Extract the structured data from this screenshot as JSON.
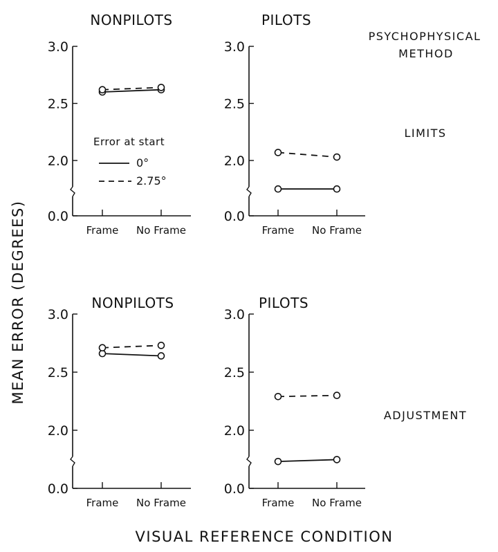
{
  "figure": {
    "ylabel": "MEAN ERROR (DEGREES)",
    "xlabel": "VISUAL REFERENCE CONDITION",
    "method_heading": [
      "PSYCHOPHYSICAL",
      "METHOD"
    ],
    "row_labels": [
      "LIMITS",
      "ADJUSTMENT"
    ]
  },
  "legend": {
    "title": "Error at start",
    "entries": [
      {
        "label": "0°",
        "style": "solid"
      },
      {
        "label": "2.75°",
        "style": "dashed"
      }
    ]
  },
  "chart_data": [
    {
      "type": "line",
      "title": "NONPILOTS",
      "method": "LIMITS",
      "categories": [
        "Frame",
        "No Frame"
      ],
      "y_ticks": [
        "0.0",
        "2.0",
        "2.5",
        "3.0"
      ],
      "ylim": [
        0.0,
        3.0
      ],
      "axis_break": "between 0.0 and 2.0",
      "series": [
        {
          "name": "0°",
          "style": "solid",
          "values": [
            2.6,
            2.62
          ]
        },
        {
          "name": "2.75°",
          "style": "dashed",
          "values": [
            2.62,
            2.64
          ]
        }
      ]
    },
    {
      "type": "line",
      "title": "PILOTS",
      "method": "LIMITS",
      "categories": [
        "Frame",
        "No Frame"
      ],
      "y_ticks": [
        "0.0",
        "2.0",
        "2.5",
        "3.0"
      ],
      "ylim": [
        0.0,
        3.0
      ],
      "axis_break": "between 0.0 and 2.0",
      "series": [
        {
          "name": "0°",
          "style": "solid",
          "values": [
            1.94,
            1.94
          ]
        },
        {
          "name": "2.75°",
          "style": "dashed",
          "values": [
            2.07,
            2.03
          ]
        }
      ]
    },
    {
      "type": "line",
      "title": "NONPILOTS",
      "method": "ADJUSTMENT",
      "categories": [
        "Frame",
        "No Frame"
      ],
      "y_ticks": [
        "0.0",
        "2.0",
        "2.5",
        "3.0"
      ],
      "ylim": [
        0.0,
        3.0
      ],
      "axis_break": "between 0.0 and 2.0",
      "series": [
        {
          "name": "0°",
          "style": "solid",
          "values": [
            2.66,
            2.64
          ]
        },
        {
          "name": "2.75°",
          "style": "dashed",
          "values": [
            2.71,
            2.73
          ]
        }
      ]
    },
    {
      "type": "line",
      "title": "PILOTS",
      "method": "ADJUSTMENT",
      "categories": [
        "Frame",
        "No Frame"
      ],
      "y_ticks": [
        "0.0",
        "2.0",
        "2.5",
        "3.0"
      ],
      "ylim": [
        0.0,
        3.0
      ],
      "axis_break": "between 0.0 and 2.0",
      "series": [
        {
          "name": "0°",
          "style": "solid",
          "values": [
            1.85,
            1.98
          ]
        },
        {
          "name": "2.75°",
          "style": "dashed",
          "values": [
            2.29,
            2.3
          ]
        }
      ]
    }
  ]
}
